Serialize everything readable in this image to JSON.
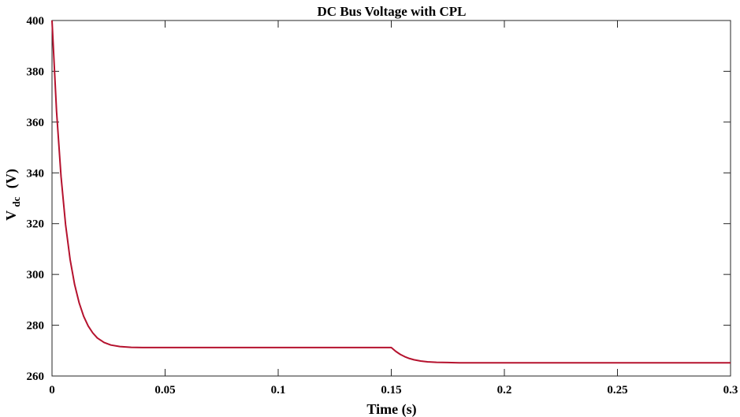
{
  "chart_data": {
    "type": "line",
    "title": "DC Bus Voltage with CPL",
    "xlabel": "Time (s)",
    "ylabel_main": "V",
    "ylabel_sub": "dc",
    "ylabel_unit": "(V)",
    "xlim": [
      0,
      0.3
    ],
    "ylim": [
      260,
      400
    ],
    "xticks": [
      0,
      0.05,
      0.1,
      0.15,
      0.2,
      0.25,
      0.3
    ],
    "xtick_labels": [
      "0",
      "0.05",
      "0.1",
      "0.15",
      "0.2",
      "0.25",
      "0.3"
    ],
    "yticks": [
      260,
      280,
      300,
      320,
      340,
      360,
      380,
      400
    ],
    "ytick_labels": [
      "260",
      "280",
      "300",
      "320",
      "340",
      "360",
      "380",
      "400"
    ],
    "grid": false,
    "legend": "none",
    "series": [
      {
        "color": "#b5122e",
        "x": [
          0,
          0.002,
          0.004,
          0.006,
          0.008,
          0.01,
          0.012,
          0.014,
          0.016,
          0.018,
          0.02,
          0.023,
          0.026,
          0.03,
          0.035,
          0.04,
          0.05,
          0.08,
          0.1,
          0.12,
          0.15,
          0.152,
          0.154,
          0.156,
          0.158,
          0.16,
          0.163,
          0.166,
          0.17,
          0.175,
          0.18,
          0.2,
          0.25,
          0.3
        ],
        "y": [
          400,
          364.3,
          338.5,
          319.6,
          305.9,
          296.0,
          288.8,
          283.5,
          279.7,
          277.0,
          275.0,
          273.2,
          272.2,
          271.6,
          271.3,
          271.2,
          271.2,
          271.2,
          271.2,
          271.2,
          271.2,
          269.7,
          268.5,
          267.6,
          266.9,
          266.4,
          265.9,
          265.6,
          265.4,
          265.3,
          265.2,
          265.2,
          265.2,
          265.2
        ]
      }
    ]
  }
}
